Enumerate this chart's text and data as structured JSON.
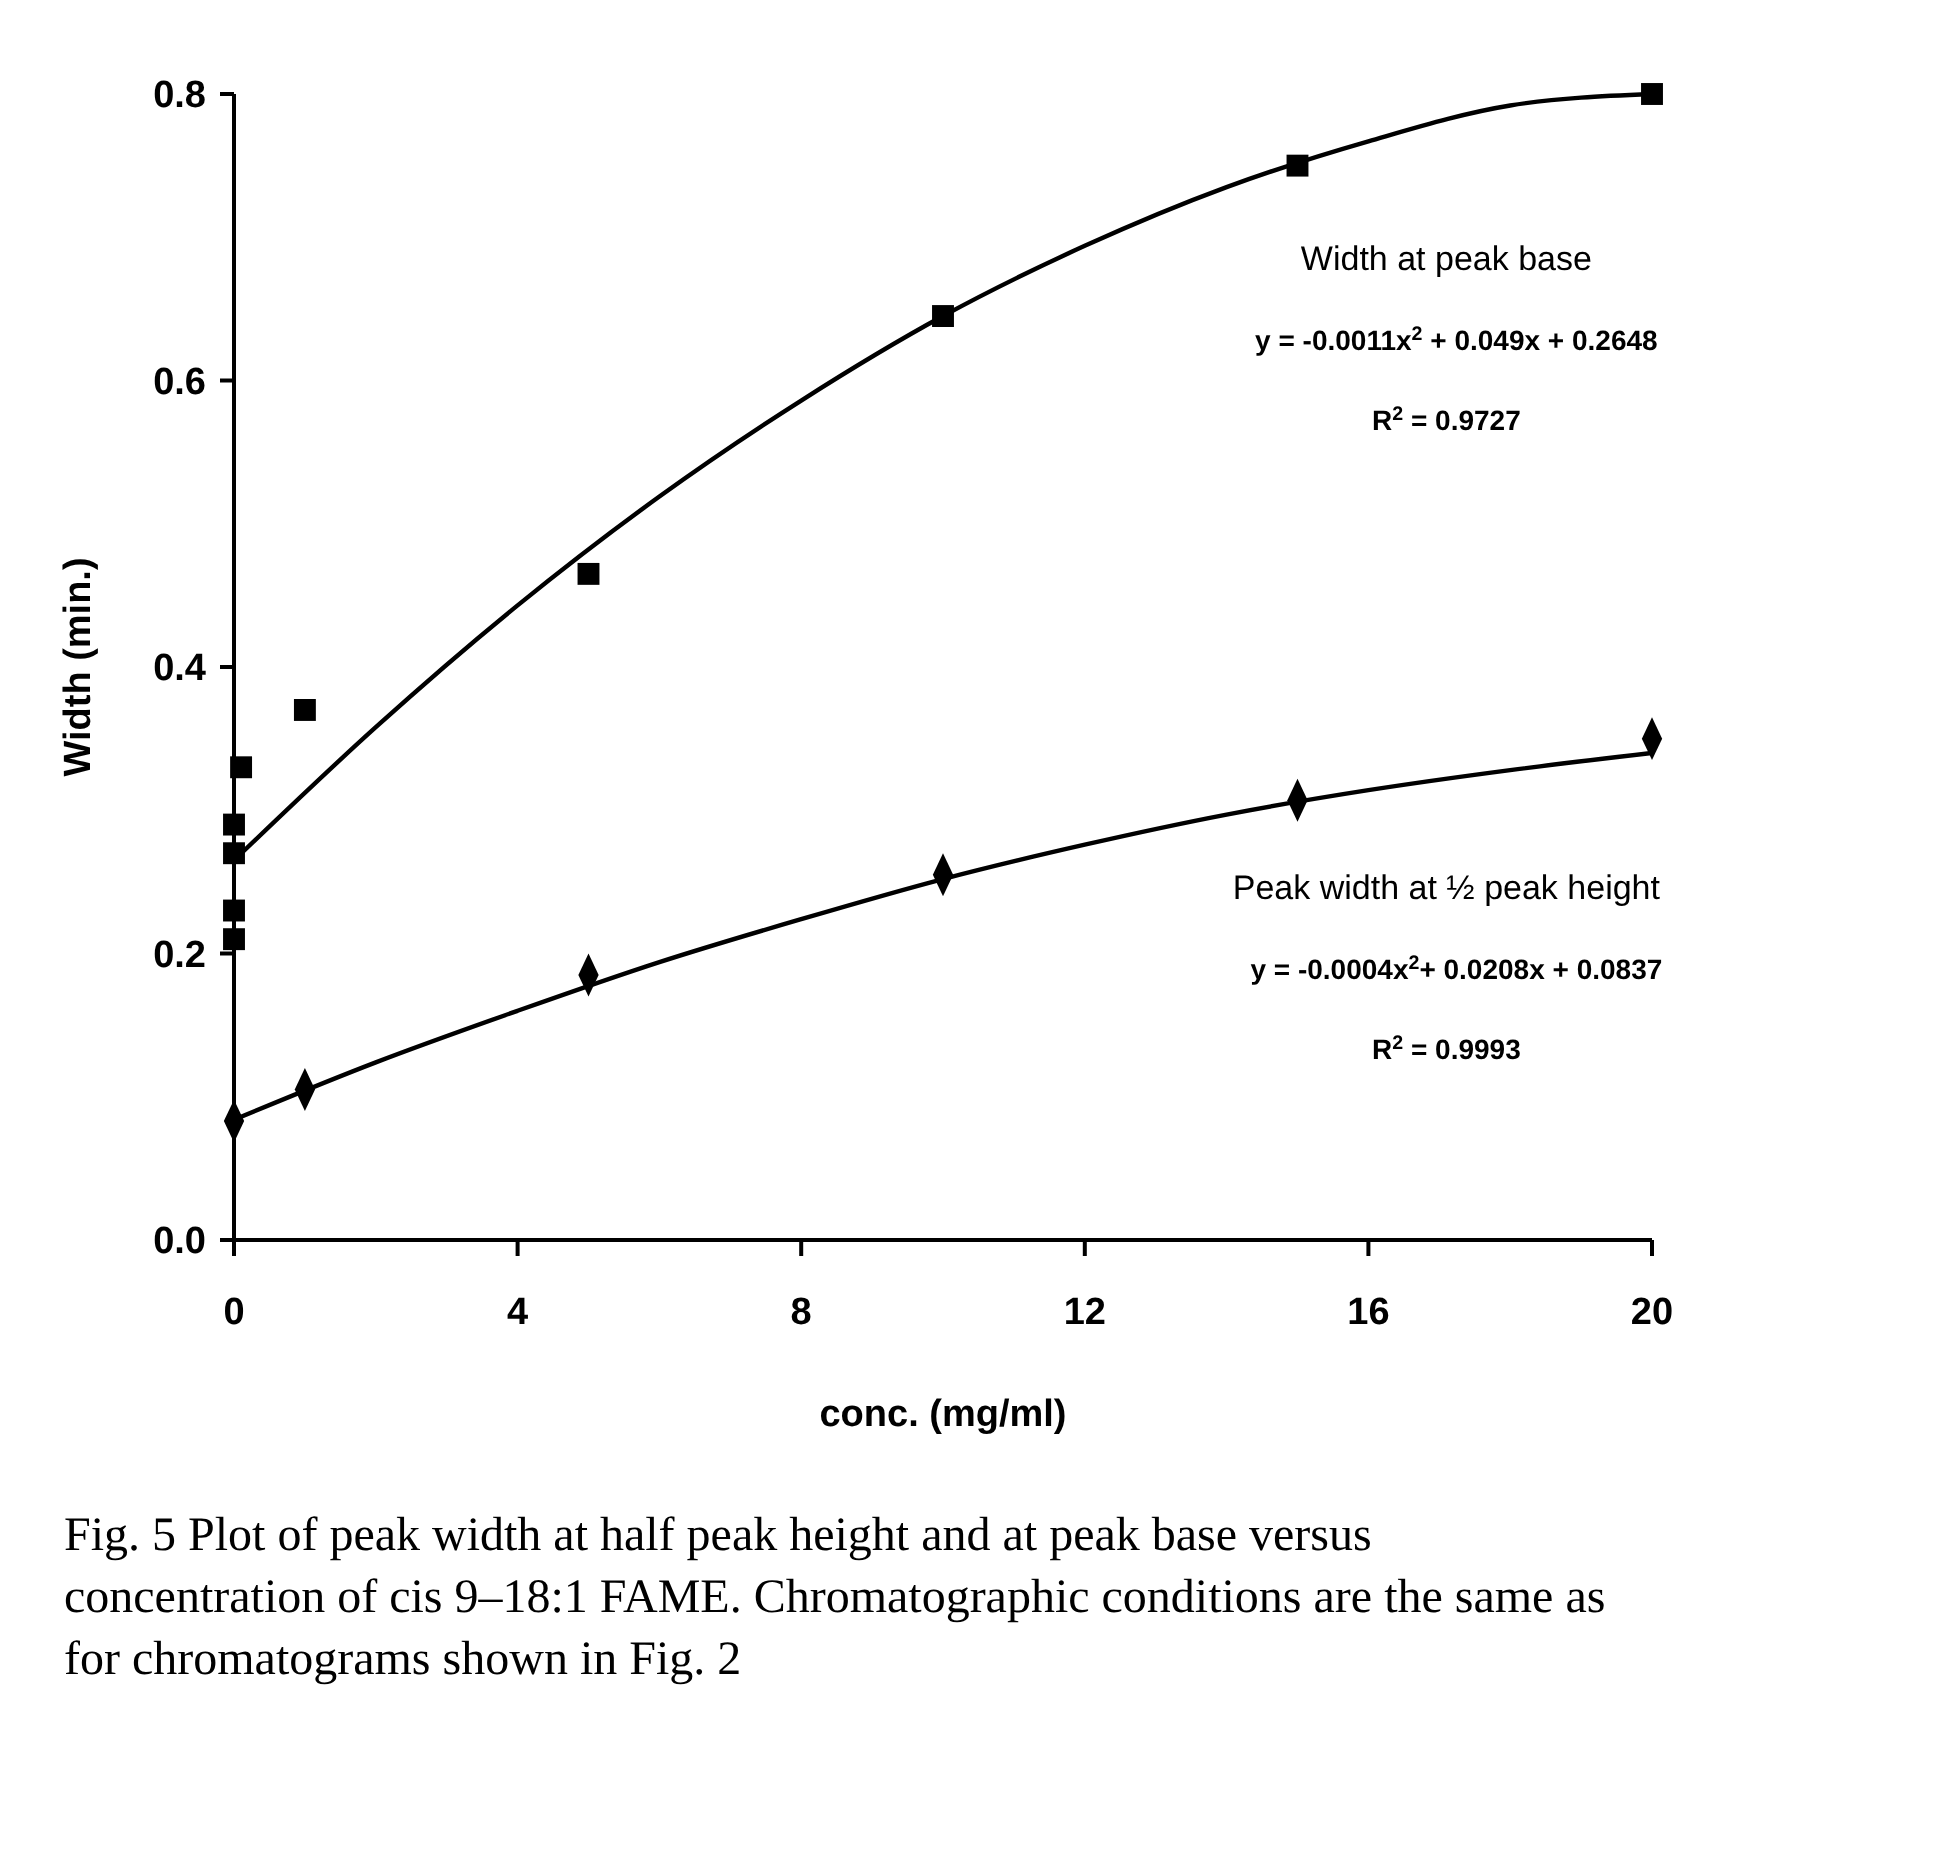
{
  "chart_data": {
    "type": "scatter",
    "xlabel": "conc. (mg/ml)",
    "ylabel": "Width (min.)",
    "xlim": [
      0,
      20
    ],
    "ylim": [
      0,
      0.8
    ],
    "xticks": [
      0,
      4,
      8,
      12,
      16,
      20
    ],
    "yticks": [
      {
        "value": 0,
        "label": "0.0"
      },
      {
        "value": 0.2,
        "label": "0.2"
      },
      {
        "value": 0.4,
        "label": "0.4"
      },
      {
        "value": 0.6,
        "label": "0.6"
      },
      {
        "value": 0.8,
        "label": "0.8"
      }
    ],
    "grid": false,
    "series": [
      {
        "name": "Width at peak base",
        "marker": "square",
        "color": "#000000",
        "x": [
          0,
          0,
          0,
          0,
          0.1,
          1,
          5,
          10,
          15,
          20
        ],
        "values": [
          0.29,
          0.27,
          0.23,
          0.21,
          0.33,
          0.37,
          0.465,
          0.645,
          0.75,
          0.8
        ]
      },
      {
        "type": "line",
        "marker": "none",
        "line_style": "solid",
        "color": "#000000",
        "x": [
          0,
          2,
          4,
          6,
          8,
          10,
          12,
          14,
          16,
          18,
          20
        ],
        "values": [
          0.265,
          0.358,
          0.443,
          0.519,
          0.586,
          0.645,
          0.694,
          0.735,
          0.767,
          0.792,
          0.8
        ]
      },
      {
        "name": "Peak width at ½ peak height",
        "marker": "diamond",
        "color": "#000000",
        "x": [
          0,
          1,
          5,
          10,
          15,
          20
        ],
        "values": [
          0.083,
          0.105,
          0.185,
          0.255,
          0.307,
          0.35
        ]
      },
      {
        "type": "line",
        "marker": "none",
        "line_style": "solid",
        "color": "#000000",
        "x": [
          0,
          2,
          4,
          6,
          8,
          10,
          12,
          14,
          16,
          18,
          20
        ],
        "values": [
          0.084,
          0.124,
          0.16,
          0.194,
          0.224,
          0.252,
          0.276,
          0.297,
          0.314,
          0.328,
          0.34
        ]
      }
    ],
    "annotations": [
      "y = -0.0011x$^{2}$ + 0.049x + 0.2648",
      "R$^{2}$ = 0.9727",
      "y = -0.0004x$^{2}$+ 0.0208x + 0.0837",
      "R$^{2}$ = 0.9993",
      "Fig. 5  Plot of peak width at half peak height and at peak base versus concentration of cis 9–18:1 FAME. Chromatographic conditions are the same as for chromatograms shown in Fig. 2"
    ]
  }
}
